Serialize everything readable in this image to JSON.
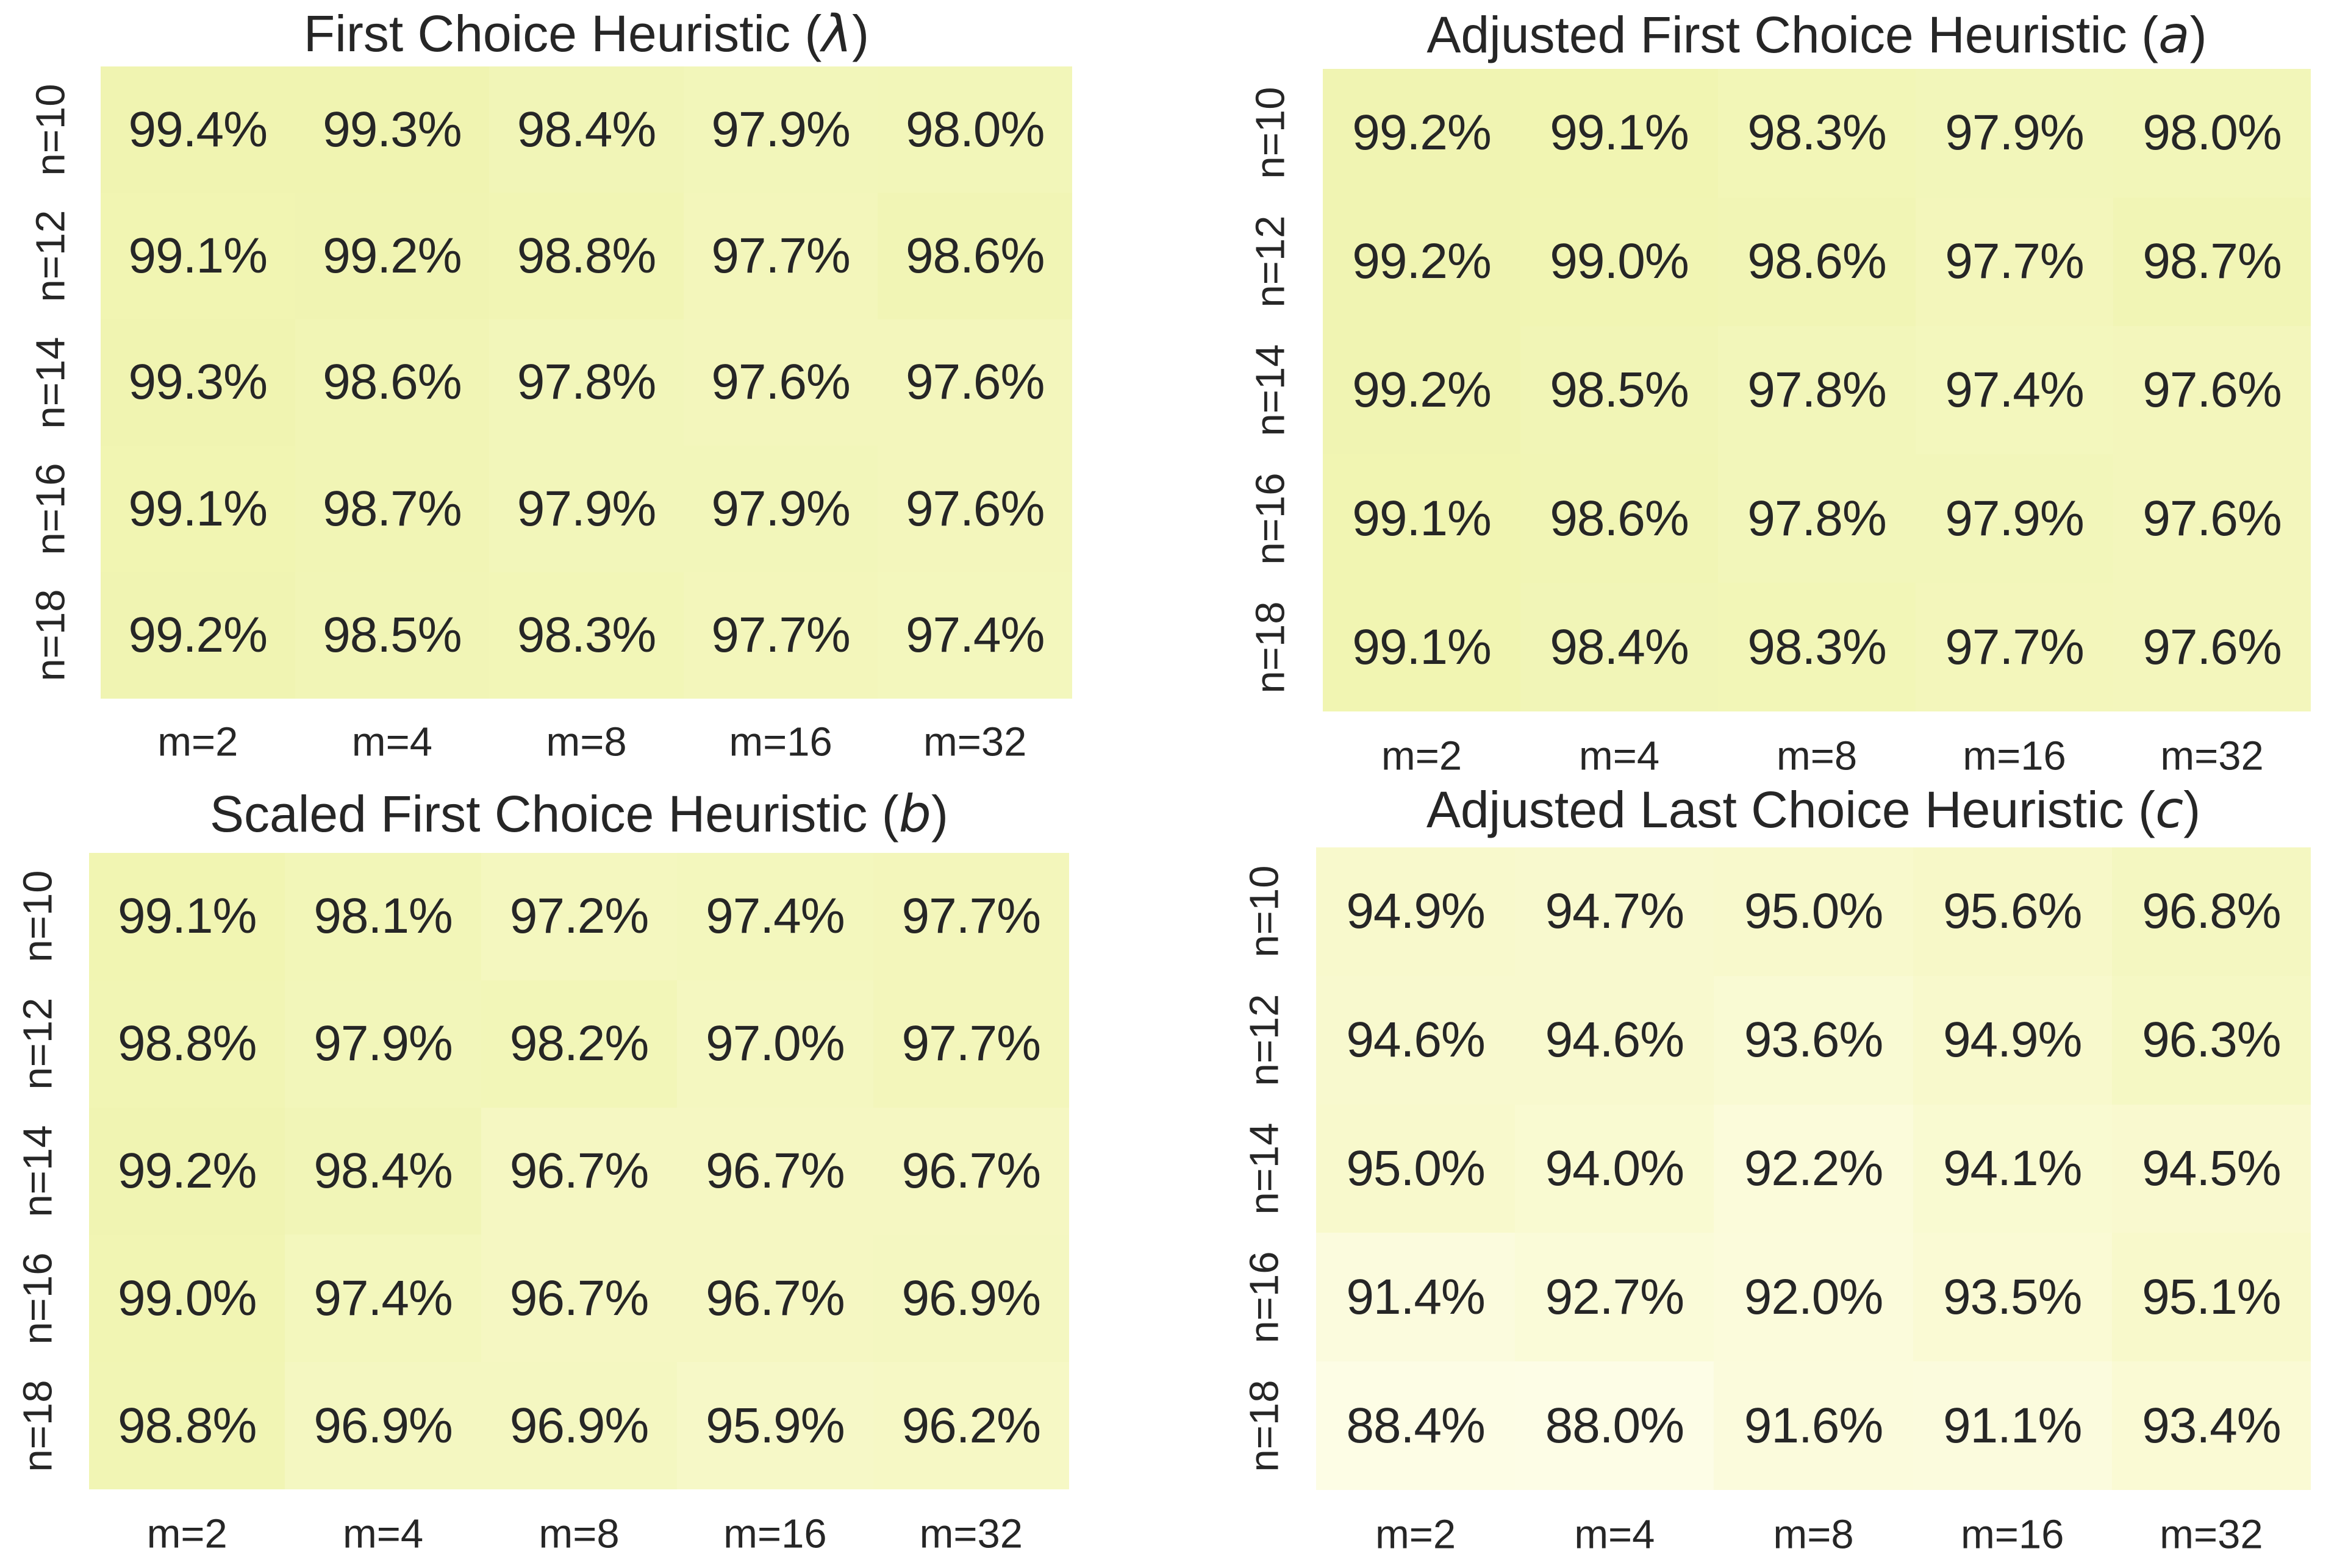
{
  "chart_data": [
    {
      "type": "heatmap",
      "title": "First Choice Heuristic (λ)",
      "title_prefix": "First Choice Heuristic (",
      "title_symbol": "λ",
      "title_suffix": ")",
      "x_tick_labels": [
        "m=2",
        "m=4",
        "m=8",
        "m=16",
        "m=32"
      ],
      "y_tick_labels": [
        "n=10",
        "n=12",
        "n=14",
        "n=16",
        "n=18"
      ],
      "value_format": "percent_1dp",
      "values_percent": [
        [
          99.4,
          99.3,
          98.4,
          97.9,
          98.0
        ],
        [
          99.1,
          99.2,
          98.8,
          97.7,
          98.6
        ],
        [
          99.3,
          98.6,
          97.8,
          97.6,
          97.6
        ],
        [
          99.1,
          98.7,
          97.9,
          97.9,
          97.6
        ],
        [
          99.2,
          98.5,
          98.3,
          97.7,
          97.4
        ]
      ]
    },
    {
      "type": "heatmap",
      "title": "Adjusted First Choice Heuristic (a)",
      "title_prefix": "Adjusted First Choice Heuristic (",
      "title_symbol": "a",
      "title_suffix": ")",
      "x_tick_labels": [
        "m=2",
        "m=4",
        "m=8",
        "m=16",
        "m=32"
      ],
      "y_tick_labels": [
        "n=10",
        "n=12",
        "n=14",
        "n=16",
        "n=18"
      ],
      "value_format": "percent_1dp",
      "values_percent": [
        [
          99.2,
          99.1,
          98.3,
          97.9,
          98.0
        ],
        [
          99.2,
          99.0,
          98.6,
          97.7,
          98.7
        ],
        [
          99.2,
          98.5,
          97.8,
          97.4,
          97.6
        ],
        [
          99.1,
          98.6,
          97.8,
          97.9,
          97.6
        ],
        [
          99.1,
          98.4,
          98.3,
          97.7,
          97.6
        ]
      ]
    },
    {
      "type": "heatmap",
      "title": "Scaled First Choice Heuristic (b)",
      "title_prefix": "Scaled First Choice Heuristic (",
      "title_symbol": "b",
      "title_suffix": ")",
      "x_tick_labels": [
        "m=2",
        "m=4",
        "m=8",
        "m=16",
        "m=32"
      ],
      "y_tick_labels": [
        "n=10",
        "n=12",
        "n=14",
        "n=16",
        "n=18"
      ],
      "value_format": "percent_1dp",
      "values_percent": [
        [
          99.1,
          98.1,
          97.2,
          97.4,
          97.7
        ],
        [
          98.8,
          97.9,
          98.2,
          97.0,
          97.7
        ],
        [
          99.2,
          98.4,
          96.7,
          96.7,
          96.7
        ],
        [
          99.0,
          97.4,
          96.7,
          96.7,
          96.9
        ],
        [
          98.8,
          96.9,
          96.9,
          95.9,
          96.2
        ]
      ]
    },
    {
      "type": "heatmap",
      "title": "Adjusted Last Choice Heuristic (c)",
      "title_prefix": "Adjusted Last Choice Heuristic (",
      "title_symbol": "c",
      "title_suffix": ")",
      "x_tick_labels": [
        "m=2",
        "m=4",
        "m=8",
        "m=16",
        "m=32"
      ],
      "y_tick_labels": [
        "n=10",
        "n=12",
        "n=14",
        "n=16",
        "n=18"
      ],
      "value_format": "percent_1dp",
      "values_percent": [
        [
          94.9,
          94.7,
          95.0,
          95.6,
          96.8
        ],
        [
          94.6,
          94.6,
          93.6,
          94.9,
          96.3
        ],
        [
          95.0,
          94.0,
          92.2,
          94.1,
          94.5
        ],
        [
          91.4,
          92.7,
          92.0,
          93.5,
          95.1
        ],
        [
          88.4,
          88.0,
          91.6,
          91.1,
          93.4
        ]
      ]
    }
  ],
  "style": {
    "text_color": "#262626",
    "page_background": "#ffffff",
    "colormap": {
      "type": "linear_anchors",
      "description": "cell background by value: pale cream for low, yellow-green for high",
      "anchors": [
        {
          "v": 88.0,
          "color": "#fdfde6"
        },
        {
          "v": 92.0,
          "color": "#fbfbdb"
        },
        {
          "v": 95.0,
          "color": "#f8f9cc"
        },
        {
          "v": 97.0,
          "color": "#f4f7c0"
        },
        {
          "v": 98.0,
          "color": "#f2f6b9"
        },
        {
          "v": 99.5,
          "color": "#f0f4b0"
        }
      ]
    }
  }
}
